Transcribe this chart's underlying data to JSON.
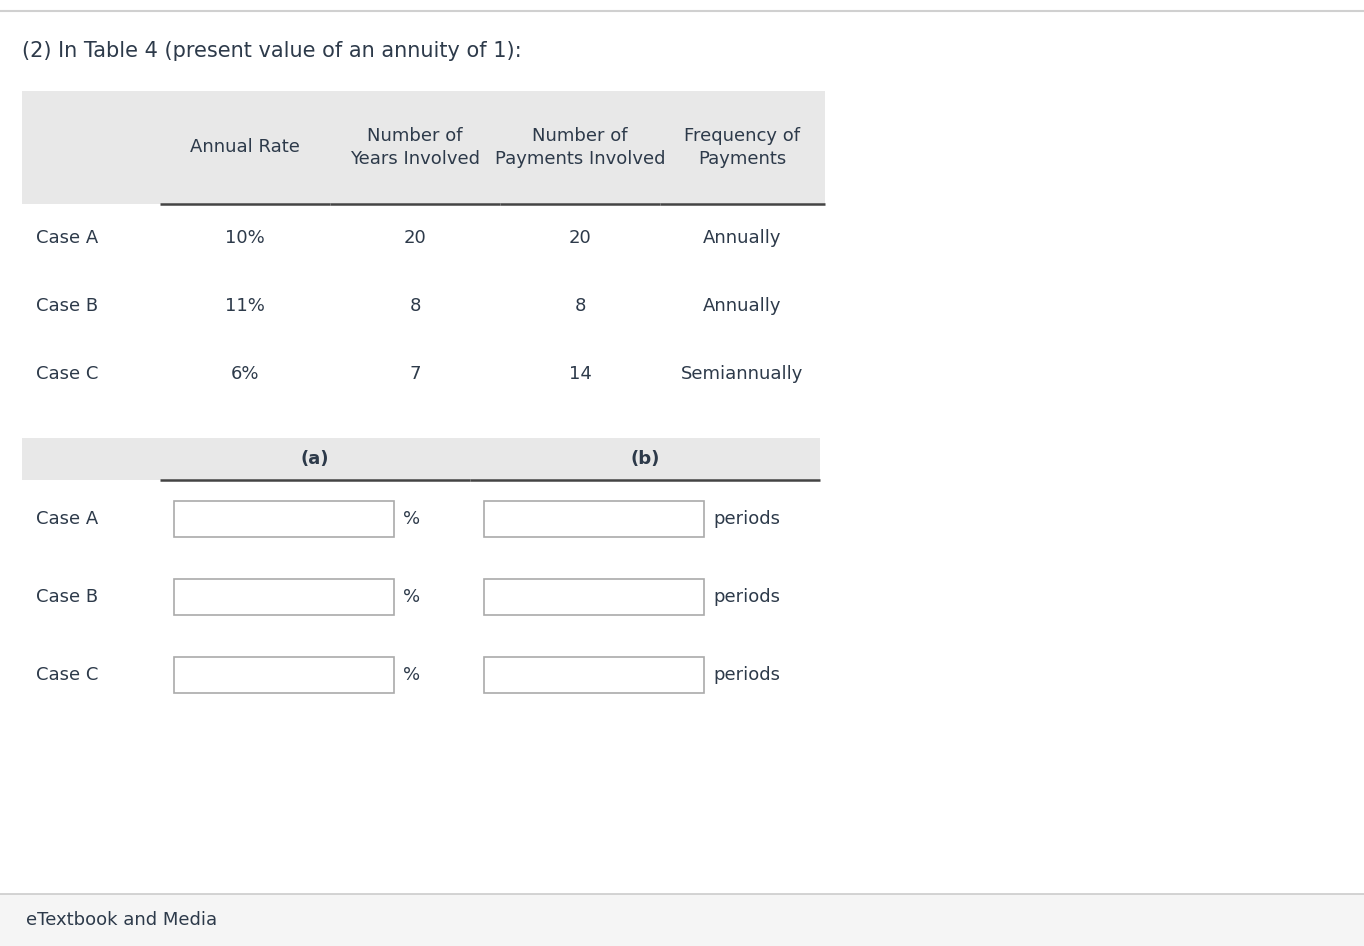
{
  "title": "(2) In Table 4 (present value of an annuity of 1):",
  "title_fontsize": 15,
  "background_color": "#ffffff",
  "header_bg": "#e8e8e8",
  "text_color": "#2d3a4a",
  "footer": "eTextbook and Media",
  "footer_bg": "#f5f5f5",
  "top_border_color": "#cccccc",
  "table1": {
    "col_headers": [
      "Annual Rate",
      "Number of\nYears Involved",
      "Number of\nPayments Involved",
      "Frequency of\nPayments"
    ],
    "rows": [
      [
        "Case A",
        "10%",
        "20",
        "20",
        "Annually"
      ],
      [
        "Case B",
        "11%",
        "8",
        "8",
        "Annually"
      ],
      [
        "Case C",
        "6%",
        "7",
        "14",
        "Semiannually"
      ]
    ]
  },
  "table2": {
    "col_headers": [
      "(a)",
      "(b)"
    ],
    "row_labels": [
      "Case A",
      "Case B",
      "Case C"
    ],
    "suffix_a": "%",
    "suffix_b": "periods"
  }
}
